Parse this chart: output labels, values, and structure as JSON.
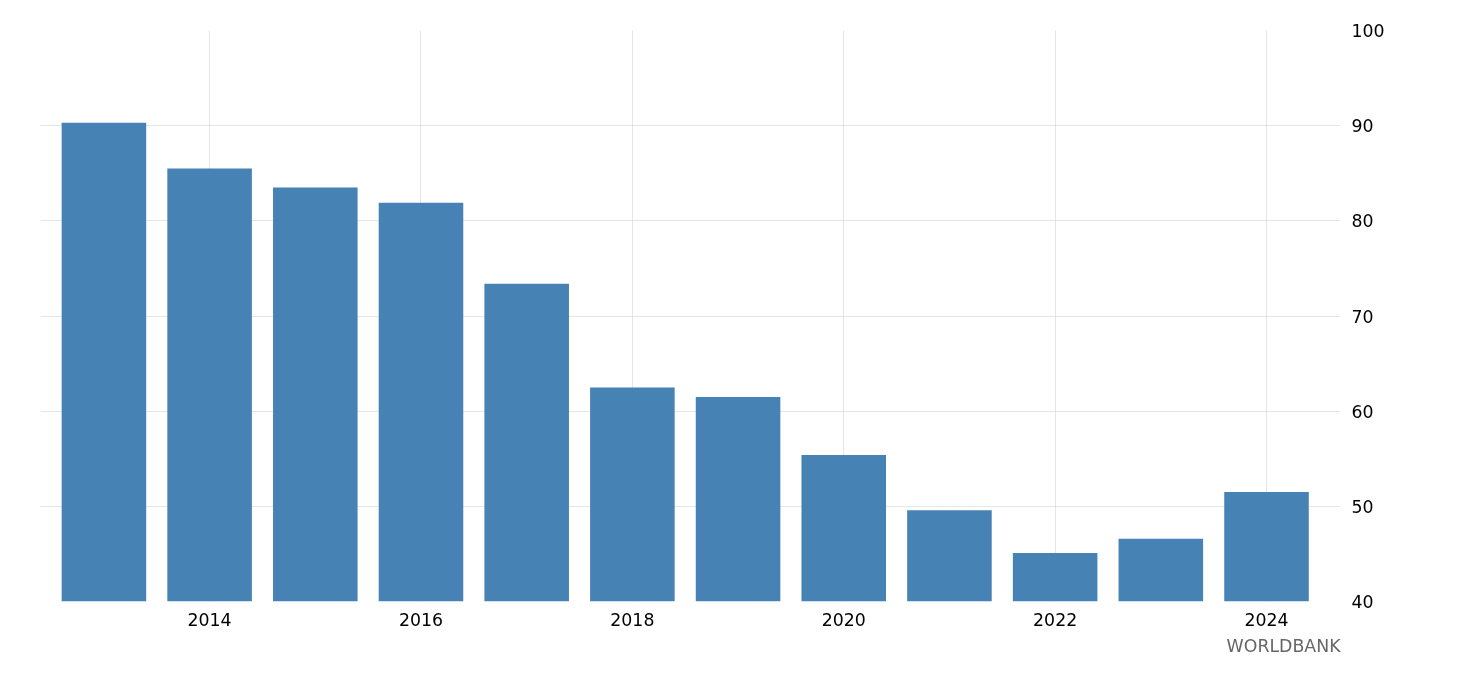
{
  "chart_data": {
    "type": "bar",
    "x": [
      2013,
      2014,
      2015,
      2016,
      2017,
      2018,
      2019,
      2020,
      2021,
      2022,
      2023,
      2024
    ],
    "values": [
      90.3,
      85.5,
      83.5,
      81.9,
      73.4,
      62.5,
      61.5,
      55.4,
      49.6,
      45.1,
      46.6,
      51.5
    ],
    "color": "#4682b4",
    "xlim": [
      2012.4,
      2024.7
    ],
    "xticks": [
      2014,
      2016,
      2018,
      2020,
      2022,
      2024
    ],
    "ylim": [
      40,
      100
    ],
    "yticks": [
      40,
      50,
      60,
      70,
      80,
      90,
      100
    ],
    "grid": true,
    "annotations": [
      "WORLDBANK"
    ]
  }
}
